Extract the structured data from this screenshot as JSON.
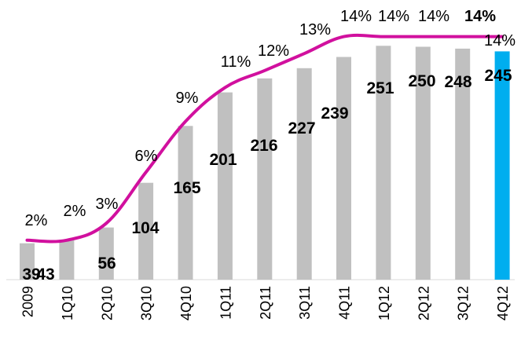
{
  "chart_data": {
    "type": "bar",
    "title": "",
    "xlabel": "",
    "ylabel": "",
    "categories": [
      "2009",
      "1Q10",
      "2Q10",
      "3Q10",
      "4Q10",
      "1Q11",
      "2Q11",
      "3Q11",
      "4Q11",
      "1Q12",
      "2Q12",
      "3Q12",
      "4Q12"
    ],
    "series": [
      {
        "type": "bar",
        "values": [
          39,
          43,
          56,
          104,
          165,
          201,
          216,
          227,
          239,
          251,
          250,
          248,
          245
        ],
        "value_labels": [
          "39",
          "43",
          "56",
          "104",
          "165",
          "201",
          "216",
          "227",
          "239",
          "251",
          "250",
          "248",
          "245"
        ]
      },
      {
        "type": "line",
        "values": [
          2,
          2,
          3,
          6,
          9,
          11,
          12,
          13,
          14,
          14,
          14,
          14,
          14
        ],
        "value_labels": [
          "2%",
          "2%",
          "3%",
          "6%",
          "9%",
          "11%",
          "12%",
          "13%",
          "14%",
          "14%",
          "14%",
          "14%",
          "14%"
        ]
      }
    ],
    "highlight_category": "4Q12",
    "bold_labels": [
      "14%"
    ],
    "colors": {
      "bar": "#c0c0c0",
      "bar_highlight": "#00aeef",
      "line": "#d1109e"
    },
    "ylim": [
      0,
      300
    ],
    "grid": false,
    "legend": "none"
  }
}
